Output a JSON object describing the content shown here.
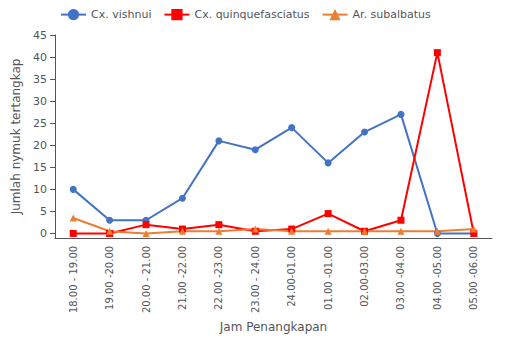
{
  "chart_data": {
    "type": "line",
    "xlabel": "Jam Penangkapan",
    "ylabel": "Jumlah nymuk tertangkap",
    "categories": [
      "18.00 - 19.00",
      "19.00 -20.00",
      "20.00 - 21.00",
      "21.00 -22.00",
      "22.00 -23.00",
      "23.00 - 24.00",
      "24.00-01.00",
      "01.00 -01.00",
      "02.00-03.00",
      "03.00 -04.00",
      "04.00 -05.00",
      "05.00 -06.00"
    ],
    "series": [
      {
        "name": "Cx. vishnui",
        "color": "#4472C4",
        "marker": "circle",
        "values": [
          10,
          3,
          3,
          8,
          21,
          19,
          24,
          16,
          23,
          27,
          0,
          0
        ]
      },
      {
        "name": "Cx. quinquefasciatus",
        "color": "#FF0000",
        "marker": "square",
        "values": [
          0,
          0,
          2,
          1,
          2,
          0.5,
          1,
          4.5,
          0.5,
          3,
          41,
          0
        ]
      },
      {
        "name": "Ar. subalbatus",
        "color": "#ED7D31",
        "marker": "triangle",
        "values": [
          3.5,
          0.5,
          0,
          0.5,
          0.5,
          1,
          0.5,
          0.5,
          0.5,
          0.5,
          0.5,
          1
        ]
      }
    ],
    "ylim": [
      -1,
      45
    ],
    "yticks": [
      0,
      5,
      10,
      15,
      20,
      25,
      30,
      35,
      40,
      45
    ],
    "grid": false,
    "legend": "upper left"
  }
}
